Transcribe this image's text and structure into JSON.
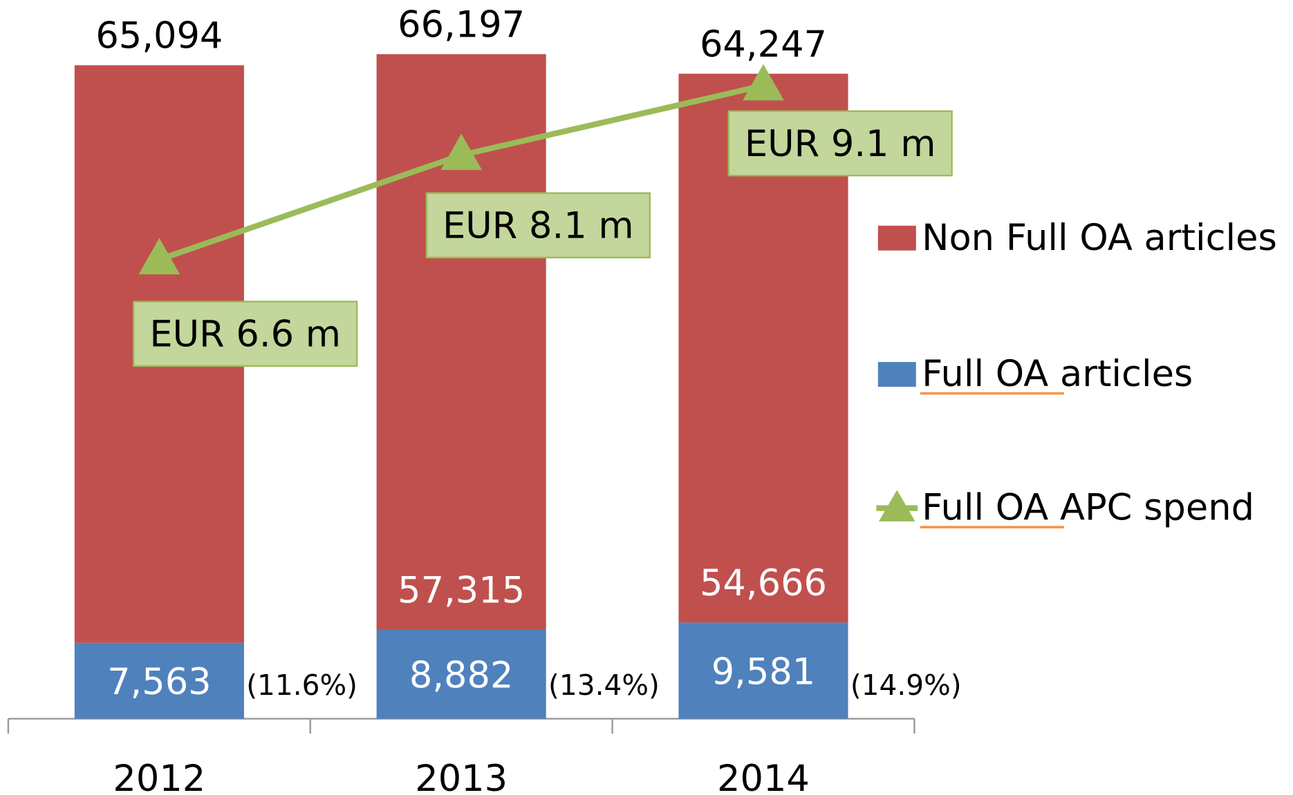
{
  "chart_data": {
    "type": "bar",
    "stacked": true,
    "categories": [
      "2012",
      "2013",
      "2014"
    ],
    "series": [
      {
        "name": "Full OA articles",
        "color": "#4f81bd",
        "values": [
          7563,
          8882,
          9581
        ],
        "value_labels": [
          "7,563",
          "8,882",
          "9,581"
        ]
      },
      {
        "name": "Non Full OA articles",
        "color": "#c0504d",
        "values": [
          57531,
          57315,
          54666
        ],
        "value_labels": [
          null,
          "57,315",
          "54,666"
        ]
      },
      {
        "name": "Full OA APC spend",
        "type": "line",
        "axis": "y2",
        "color": "#9bbb59",
        "values": [
          6.6,
          8.1,
          9.1
        ],
        "value_labels": [
          "EUR 6.6 m",
          "EUR 8.1 m",
          "EUR 9.1 m"
        ]
      }
    ],
    "total_labels": [
      "65,094",
      "66,197",
      "64,247"
    ],
    "share_labels": [
      "(11.6%)",
      "(13.4%)",
      "(14.9%)"
    ],
    "ylim": [
      0,
      70000
    ],
    "y2lim": [
      0,
      10.1
    ],
    "legend": "right"
  }
}
